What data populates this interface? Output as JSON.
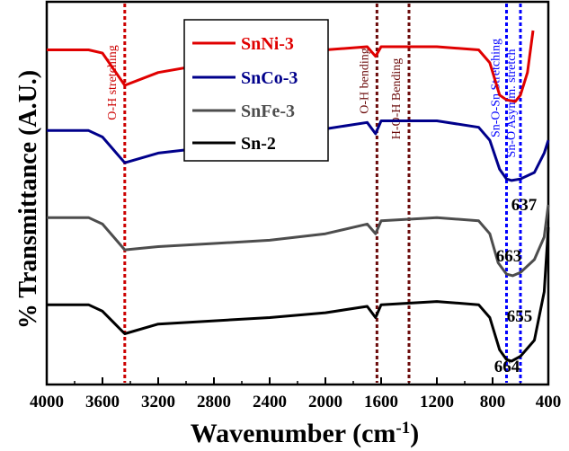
{
  "chart_data": {
    "type": "line",
    "xlabel": "Wavenumber (cm",
    "xlabel_sup": "-1",
    "xlabel_end": ")",
    "ylabel": "% Transmittance (A.U.)",
    "xlim": [
      4000,
      400
    ],
    "x_reversed": true,
    "x_ticks": [
      4000,
      3600,
      3200,
      2800,
      2400,
      2000,
      1600,
      1200,
      800,
      400
    ],
    "y_ticks_shown": false,
    "grid": false,
    "legend_position": "top-center",
    "series": [
      {
        "name": "SnNi-3",
        "color": "#e00000",
        "x": [
          4000,
          3700,
          3600,
          3440,
          3200,
          2800,
          2400,
          2000,
          1700,
          1640,
          1600,
          1200,
          900,
          820,
          750,
          700,
          637,
          600,
          550,
          510
        ],
        "y": [
          9.0,
          9.0,
          8.9,
          7.9,
          8.3,
          8.6,
          8.8,
          9.0,
          9.1,
          8.8,
          9.1,
          9.1,
          9.0,
          8.6,
          7.6,
          7.45,
          7.4,
          7.6,
          8.3,
          9.6
        ]
      },
      {
        "name": "SnCo-3",
        "color": "#00008b",
        "x": [
          4000,
          3700,
          3600,
          3440,
          3200,
          2800,
          2400,
          2000,
          1700,
          1640,
          1600,
          1200,
          900,
          820,
          750,
          700,
          663,
          600,
          500,
          430,
          400
        ],
        "y": [
          6.5,
          6.5,
          6.3,
          5.5,
          5.8,
          6.0,
          6.3,
          6.55,
          6.75,
          6.4,
          6.8,
          6.8,
          6.6,
          6.2,
          5.3,
          5.0,
          4.95,
          5.0,
          5.2,
          5.8,
          6.2
        ]
      },
      {
        "name": "SnFe-3",
        "color": "#4d4d4d",
        "x": [
          4000,
          3700,
          3600,
          3440,
          3200,
          2800,
          2400,
          2000,
          1700,
          1640,
          1600,
          1200,
          900,
          820,
          760,
          700,
          655,
          600,
          500,
          430,
          400
        ],
        "y": [
          3.8,
          3.8,
          3.6,
          2.8,
          2.9,
          3.0,
          3.1,
          3.3,
          3.6,
          3.3,
          3.7,
          3.8,
          3.7,
          3.3,
          2.4,
          2.05,
          2.0,
          2.1,
          2.5,
          3.2,
          4.2
        ]
      },
      {
        "name": "Sn-2",
        "color": "#000000",
        "x": [
          4000,
          3700,
          3600,
          3440,
          3200,
          2800,
          2400,
          2000,
          1700,
          1640,
          1600,
          1200,
          900,
          820,
          750,
          700,
          664,
          600,
          500,
          430,
          400
        ],
        "y": [
          1.1,
          1.1,
          0.9,
          0.2,
          0.5,
          0.6,
          0.7,
          0.85,
          1.05,
          0.7,
          1.1,
          1.2,
          1.1,
          0.7,
          -0.3,
          -0.6,
          -0.65,
          -0.5,
          0.0,
          1.5,
          3.5
        ]
      }
    ],
    "reference_lines": [
      {
        "x": 3440,
        "label": "O-H stretching",
        "color": "#cc0000"
      },
      {
        "x": 1630,
        "label": "O-H bending",
        "color": "#6b0a0a"
      },
      {
        "x": 1400,
        "label": "H-O-H Bending",
        "color": "#6b0a0a"
      },
      {
        "x": 700,
        "label": "Sn-O-Sn Stretching",
        "color": "#0000ff"
      },
      {
        "x": 600,
        "label": "Sn-O Asymm. stretch",
        "color": "#0000ff"
      }
    ],
    "peak_labels": [
      "637",
      "663",
      "655",
      "664"
    ]
  }
}
